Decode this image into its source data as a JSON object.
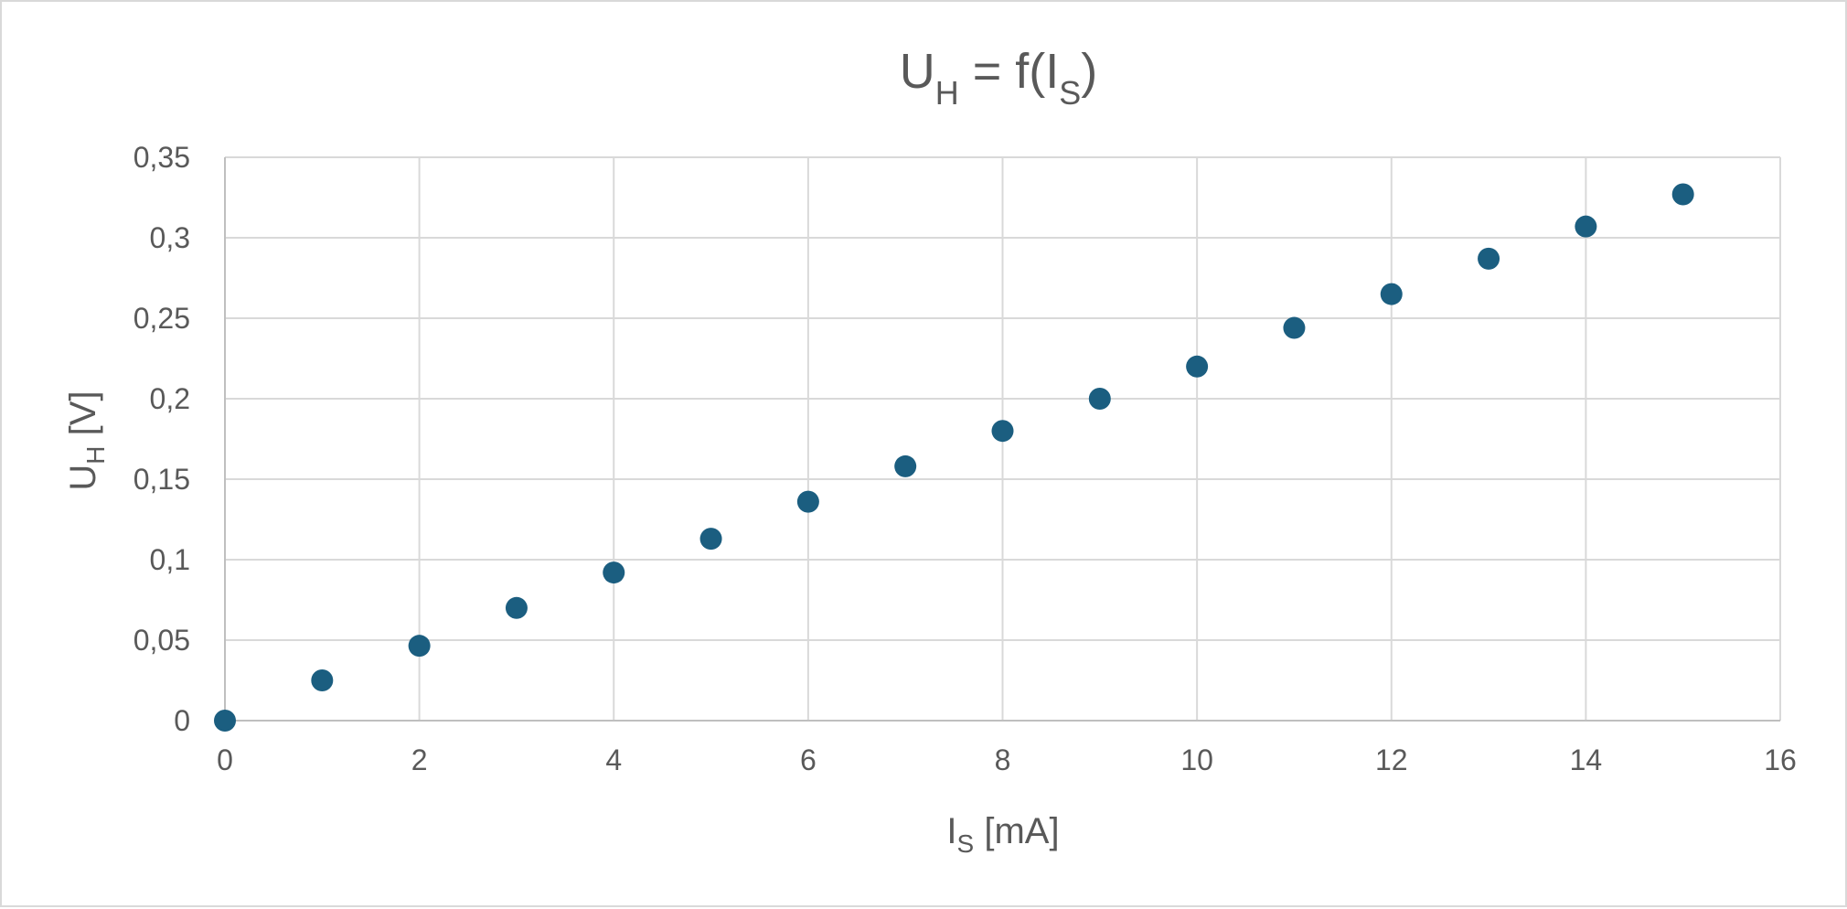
{
  "chart_data": {
    "type": "scatter",
    "title": {
      "main": "U",
      "main_sub": "H",
      "middle": " = f(I",
      "middle_sub": "S",
      "end": ")"
    },
    "xlabel": {
      "main": "I",
      "sub": "S",
      "rest": " [mA]"
    },
    "ylabel": {
      "main": "U",
      "sub": "H",
      "rest": " [V]"
    },
    "xlim": [
      0,
      16
    ],
    "ylim": [
      0,
      0.35
    ],
    "x_ticks": [
      0,
      2,
      4,
      6,
      8,
      10,
      12,
      14,
      16
    ],
    "x_tick_labels": [
      "0",
      "2",
      "4",
      "6",
      "8",
      "10",
      "12",
      "14",
      "16"
    ],
    "y_ticks": [
      0,
      0.05,
      0.1,
      0.15,
      0.2,
      0.25,
      0.3,
      0.35
    ],
    "y_tick_labels": [
      "0",
      "0,05",
      "0,1",
      "0,15",
      "0,2",
      "0,25",
      "0,3",
      "0,35"
    ],
    "grid": true,
    "series": [
      {
        "color": "#1b5e80",
        "points": [
          {
            "x": 0,
            "y": 0
          },
          {
            "x": 1,
            "y": 0.025
          },
          {
            "x": 2,
            "y": 0.0465
          },
          {
            "x": 3,
            "y": 0.07
          },
          {
            "x": 4,
            "y": 0.092
          },
          {
            "x": 5,
            "y": 0.113
          },
          {
            "x": 6,
            "y": 0.136
          },
          {
            "x": 7,
            "y": 0.158
          },
          {
            "x": 8,
            "y": 0.18
          },
          {
            "x": 9,
            "y": 0.2
          },
          {
            "x": 10,
            "y": 0.22
          },
          {
            "x": 11,
            "y": 0.244
          },
          {
            "x": 12,
            "y": 0.265
          },
          {
            "x": 13,
            "y": 0.287
          },
          {
            "x": 14,
            "y": 0.307
          },
          {
            "x": 15,
            "y": 0.327
          }
        ]
      }
    ]
  }
}
